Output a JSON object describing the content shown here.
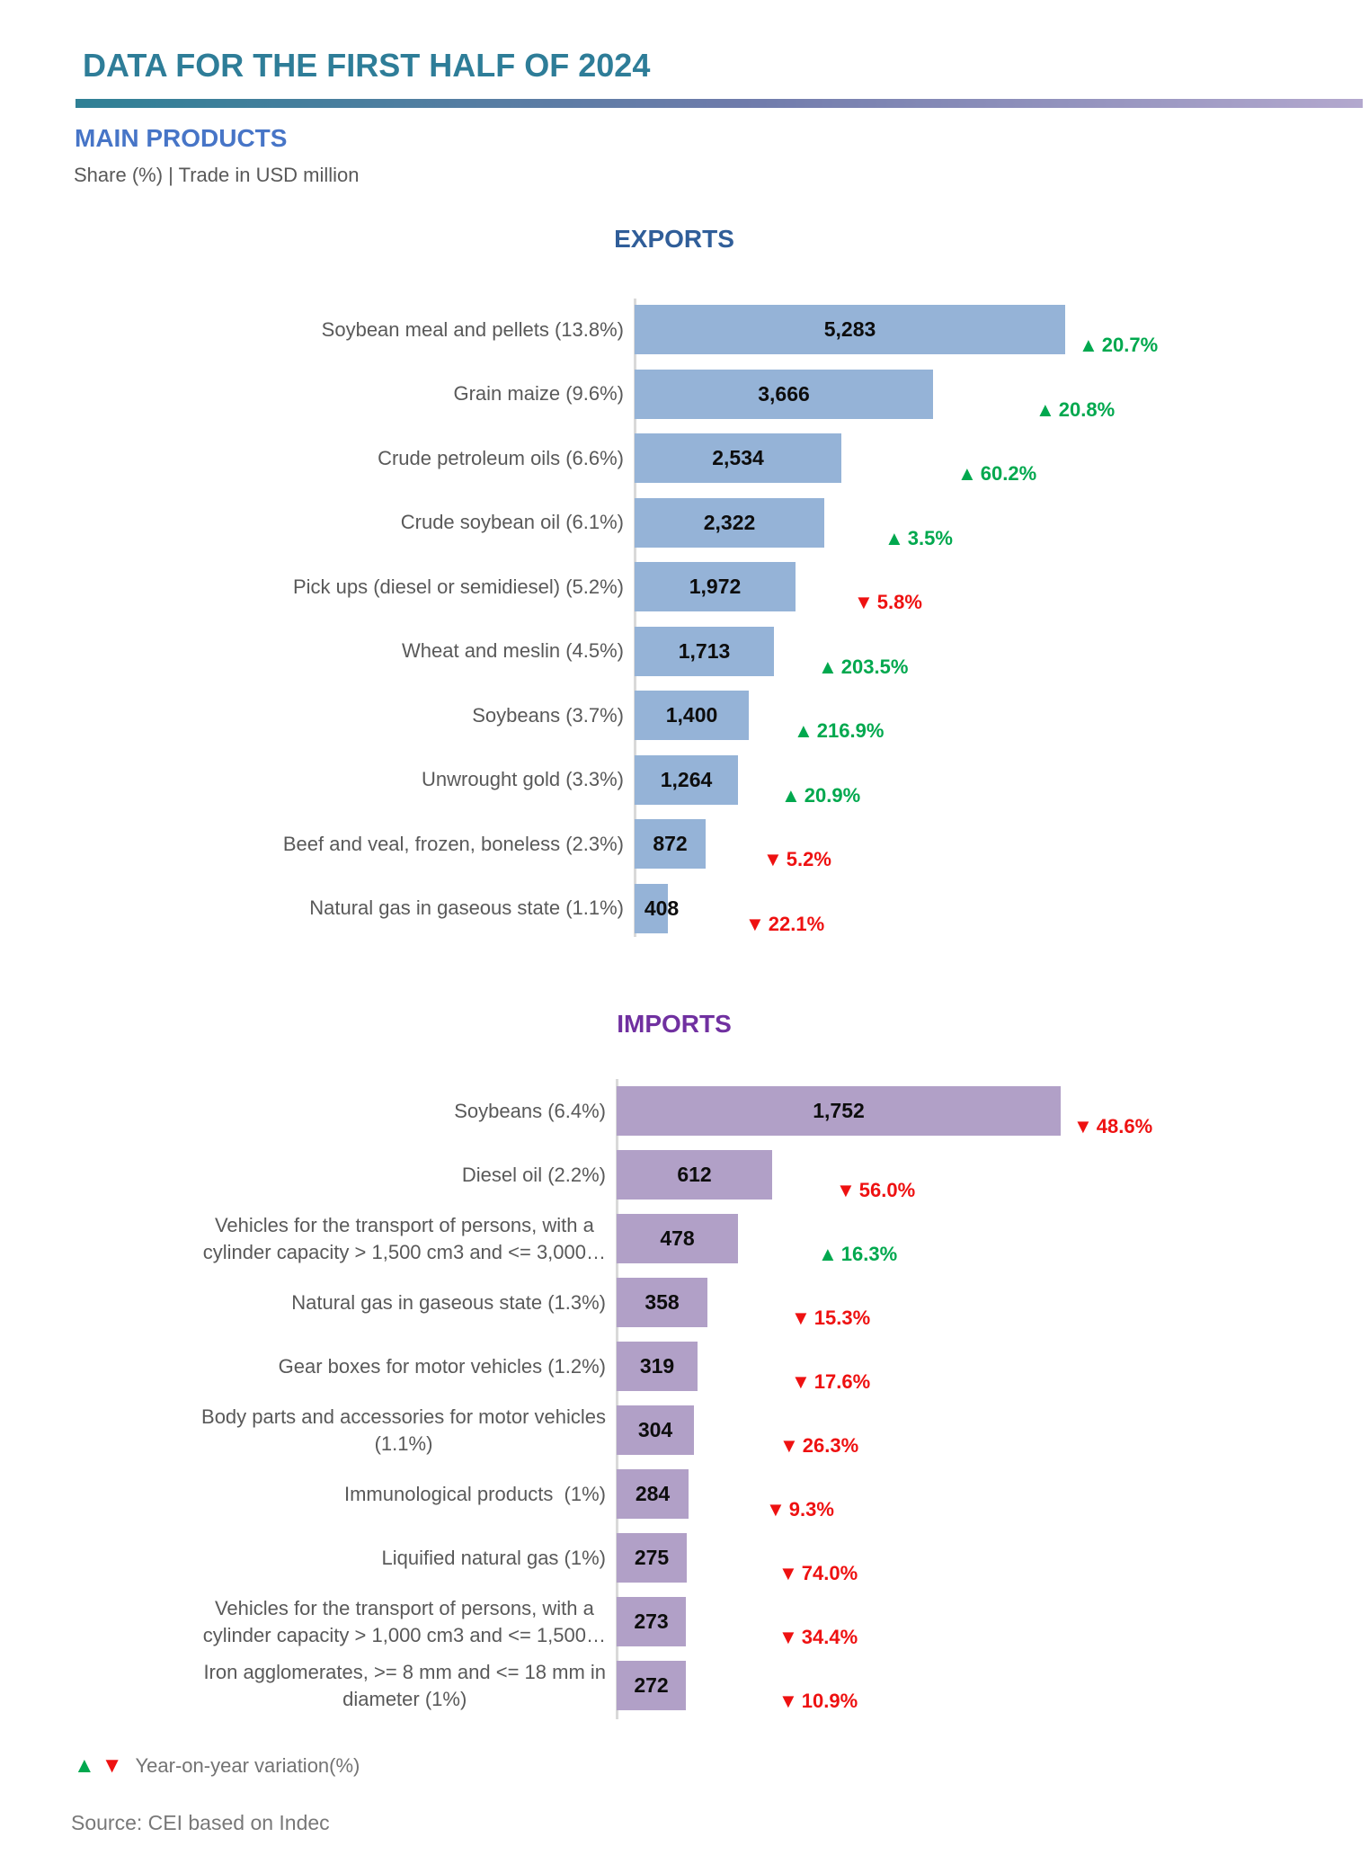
{
  "header": {
    "title": "DATA FOR THE FIRST HALF OF 2024",
    "section": "MAIN PRODUCTS",
    "subtitle": "Share (%) | Trade in USD million"
  },
  "legend": {
    "up_symbol": "▲",
    "down_symbol": "▼",
    "label": "Year-on-year variation(%)"
  },
  "source": "Source: CEI based on Indec",
  "colors": {
    "exports_bar": "#95B3D7",
    "imports_bar": "#B1A0C7",
    "up": "#00A84E",
    "down": "#EE1111",
    "exports_title": "#305E99",
    "imports_title": "#7030A0",
    "header_title": "#2E7D98",
    "section_title": "#4775C7"
  },
  "chart_data": [
    {
      "type": "bar",
      "orientation": "horizontal",
      "title": "EXPORTS",
      "unit": "USD million",
      "value_label_note": "Share (%) in category label; bar value = trade in USD million; change = year-on-year variation (%)",
      "items": [
        {
          "label": "Soybean meal and pellets (13.8%)",
          "value": 5283,
          "value_label": "5,283",
          "direction": "up",
          "arrow": "▲",
          "change_pct": 20.7,
          "change_label": "20.7%"
        },
        {
          "label": "Grain maize (9.6%)",
          "value": 3666,
          "value_label": "3,666",
          "direction": "up",
          "arrow": "▲",
          "change_pct": 20.8,
          "change_label": "20.8%"
        },
        {
          "label": "Crude petroleum oils (6.6%)",
          "value": 2534,
          "value_label": "2,534",
          "direction": "up",
          "arrow": "▲",
          "change_pct": 60.2,
          "change_label": "60.2%"
        },
        {
          "label": "Crude soybean oil (6.1%)",
          "value": 2322,
          "value_label": "2,322",
          "direction": "up",
          "arrow": "▲",
          "change_pct": 3.5,
          "change_label": "3.5%"
        },
        {
          "label": "Pick ups (diesel or semidiesel) (5.2%)",
          "value": 1972,
          "value_label": "1,972",
          "direction": "down",
          "arrow": "▼",
          "change_pct": -5.8,
          "change_label": "5.8%"
        },
        {
          "label": "Wheat and meslin (4.5%)",
          "value": 1713,
          "value_label": "1,713",
          "direction": "up",
          "arrow": "▲",
          "change_pct": 203.5,
          "change_label": "203.5%"
        },
        {
          "label": "Soybeans (3.7%)",
          "value": 1400,
          "value_label": "1,400",
          "direction": "up",
          "arrow": "▲",
          "change_pct": 216.9,
          "change_label": "216.9%"
        },
        {
          "label": "Unwrought gold (3.3%)",
          "value": 1264,
          "value_label": "1,264",
          "direction": "up",
          "arrow": "▲",
          "change_pct": 20.9,
          "change_label": "20.9%"
        },
        {
          "label": "Beef and veal, frozen, boneless (2.3%)",
          "value": 872,
          "value_label": "872",
          "direction": "down",
          "arrow": "▼",
          "change_pct": -5.2,
          "change_label": "5.2%"
        },
        {
          "label": "Natural gas in gaseous state (1.1%)",
          "value": 408,
          "value_label": "408",
          "direction": "down",
          "arrow": "▼",
          "change_pct": -22.1,
          "change_label": "22.1%"
        }
      ]
    },
    {
      "type": "bar",
      "orientation": "horizontal",
      "title": "IMPORTS",
      "unit": "USD million",
      "items": [
        {
          "label": "Soybeans (6.4%)",
          "value": 1752,
          "value_label": "1,752",
          "direction": "down",
          "arrow": "▼",
          "change_pct": -48.6,
          "change_label": "48.6%"
        },
        {
          "label": "Diesel oil (2.2%)",
          "value": 612,
          "value_label": "612",
          "direction": "down",
          "arrow": "▼",
          "change_pct": -56.0,
          "change_label": "56.0%"
        },
        {
          "label": "Vehicles for the transport of persons, with a\ncylinder capacity > 1,500 cm3 and <= 3,000…",
          "value": 478,
          "value_label": "478",
          "direction": "up",
          "arrow": "▲",
          "change_pct": 16.3,
          "change_label": "16.3%"
        },
        {
          "label": "Natural gas in gaseous state (1.3%)",
          "value": 358,
          "value_label": "358",
          "direction": "down",
          "arrow": "▼",
          "change_pct": -15.3,
          "change_label": "15.3%"
        },
        {
          "label": "Gear boxes for motor vehicles (1.2%)",
          "value": 319,
          "value_label": "319",
          "direction": "down",
          "arrow": "▼",
          "change_pct": -17.6,
          "change_label": "17.6%"
        },
        {
          "label": "Body parts and accessories for motor vehicles\n(1.1%)",
          "value": 304,
          "value_label": "304",
          "direction": "down",
          "arrow": "▼",
          "change_pct": -26.3,
          "change_label": "26.3%"
        },
        {
          "label": "Immunological products  (1%)",
          "value": 284,
          "value_label": "284",
          "direction": "down",
          "arrow": "▼",
          "change_pct": -9.3,
          "change_label": "9.3%"
        },
        {
          "label": "Liquified natural gas (1%)",
          "value": 275,
          "value_label": "275",
          "direction": "down",
          "arrow": "▼",
          "change_pct": -74.0,
          "change_label": "74.0%"
        },
        {
          "label": "Vehicles for the transport of persons, with a\ncylinder capacity > 1,000 cm3 and <= 1,500…",
          "value": 273,
          "value_label": "273",
          "direction": "down",
          "arrow": "▼",
          "change_pct": -34.4,
          "change_label": "34.4%"
        },
        {
          "label": "Iron agglomerates, >= 8 mm and <= 18 mm in\ndiameter (1%)",
          "value": 272,
          "value_label": "272",
          "direction": "down",
          "arrow": "▼",
          "change_pct": -10.9,
          "change_label": "10.9%"
        }
      ]
    }
  ]
}
